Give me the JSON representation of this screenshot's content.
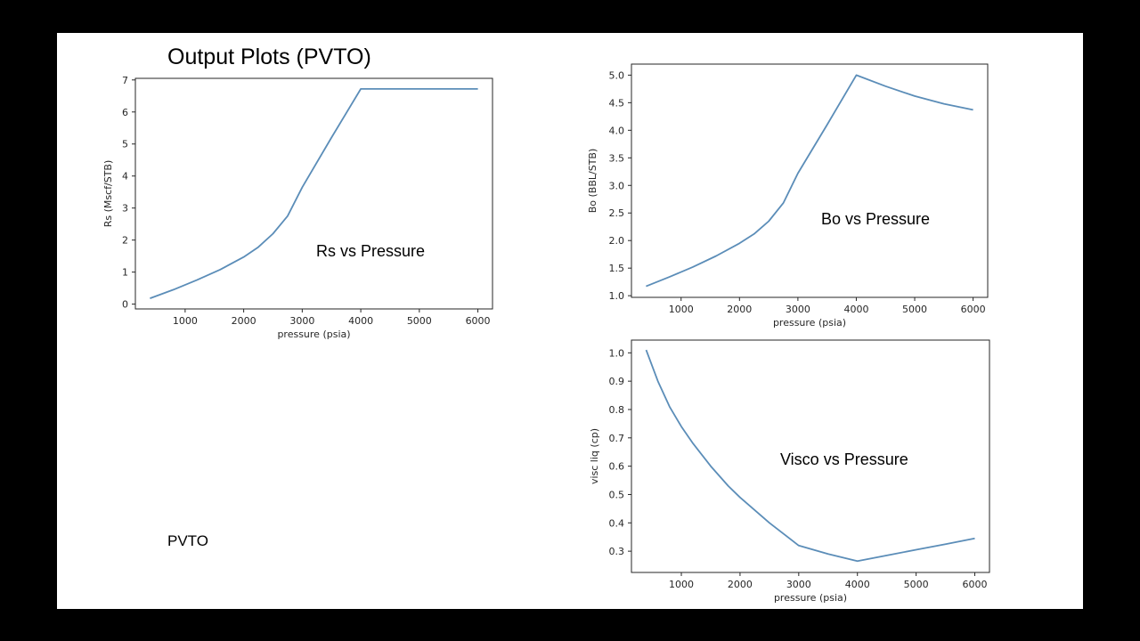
{
  "slide": {
    "title": "Output Plots (PVTO)",
    "footer_label": "PVTO"
  },
  "colors": {
    "background": "#000000",
    "slide": "#ffffff",
    "series": "#5b8db8",
    "axis": "#262626"
  },
  "chart_data": [
    {
      "type": "line",
      "title": "",
      "annotation": "Rs vs Pressure",
      "xlabel": "pressure (psia)",
      "ylabel": "Rs (Mscf/STB)",
      "xlim": [
        150,
        6250
      ],
      "ylim": [
        -0.15,
        7.05
      ],
      "xticks": [
        1000,
        2000,
        3000,
        4000,
        5000,
        6000
      ],
      "yticks": [
        0,
        1,
        2,
        3,
        4,
        5,
        6,
        7
      ],
      "grid": false,
      "series": [
        {
          "x": [
            400,
            800,
            1200,
            1600,
            2000,
            2250,
            2500,
            2750,
            3000,
            3500,
            4000,
            4500,
            5000,
            5500,
            6000
          ],
          "y": [
            0.18,
            0.45,
            0.75,
            1.08,
            1.47,
            1.78,
            2.2,
            2.75,
            3.65,
            5.2,
            6.72,
            6.72,
            6.72,
            6.72,
            6.72
          ]
        }
      ]
    },
    {
      "type": "line",
      "title": "",
      "annotation": "Bo vs Pressure",
      "xlabel": "pressure (psia)",
      "ylabel": "Bo (BBL/STB)",
      "xlim": [
        150,
        6250
      ],
      "ylim": [
        0.97,
        5.2
      ],
      "xticks": [
        1000,
        2000,
        3000,
        4000,
        5000,
        6000
      ],
      "yticks": [
        1.0,
        1.5,
        2.0,
        2.5,
        3.0,
        3.5,
        4.0,
        4.5,
        5.0
      ],
      "ytick_labels": [
        "1.0",
        "1.5",
        "2.0",
        "2.5",
        "3.0",
        "3.5",
        "4.0",
        "4.5",
        "5.0"
      ],
      "grid": false,
      "series": [
        {
          "x": [
            400,
            800,
            1200,
            1600,
            2000,
            2250,
            2500,
            2750,
            3000,
            3500,
            4000,
            4500,
            5000,
            5500,
            6000
          ],
          "y": [
            1.17,
            1.34,
            1.52,
            1.72,
            1.95,
            2.12,
            2.35,
            2.68,
            3.22,
            4.1,
            5.0,
            4.8,
            4.62,
            4.48,
            4.37
          ]
        }
      ]
    },
    {
      "type": "line",
      "title": "",
      "annotation": "Visco vs Pressure",
      "xlabel": "pressure (psia)",
      "ylabel": "visc liq (cp)",
      "xlim": [
        150,
        6250
      ],
      "ylim": [
        0.225,
        1.045
      ],
      "xticks": [
        1000,
        2000,
        3000,
        4000,
        5000,
        6000
      ],
      "yticks": [
        0.3,
        0.4,
        0.5,
        0.6,
        0.7,
        0.8,
        0.9,
        1.0
      ],
      "ytick_labels": [
        "0.3",
        "0.4",
        "0.5",
        "0.6",
        "0.7",
        "0.8",
        "0.9",
        "1.0"
      ],
      "grid": false,
      "series": [
        {
          "x": [
            400,
            600,
            800,
            1000,
            1200,
            1500,
            1800,
            2000,
            2500,
            3000,
            3500,
            4000,
            4500,
            5000,
            5500,
            6000
          ],
          "y": [
            1.01,
            0.9,
            0.81,
            0.74,
            0.68,
            0.6,
            0.53,
            0.49,
            0.4,
            0.32,
            0.29,
            0.265,
            0.285,
            0.305,
            0.325,
            0.345
          ]
        }
      ]
    }
  ]
}
